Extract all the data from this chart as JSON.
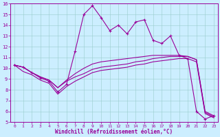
{
  "xlabel": "Windchill (Refroidissement éolien,°C)",
  "background_color": "#cceeff",
  "line_color": "#990099",
  "xlim": [
    -0.5,
    23.5
  ],
  "ylim": [
    5,
    16
  ],
  "xticks": [
    0,
    1,
    2,
    3,
    4,
    5,
    6,
    7,
    8,
    9,
    10,
    11,
    12,
    13,
    14,
    15,
    16,
    17,
    18,
    19,
    20,
    21,
    22,
    23
  ],
  "yticks": [
    5,
    6,
    7,
    8,
    9,
    10,
    11,
    12,
    13,
    14,
    15,
    16
  ],
  "series1_x": [
    0,
    1,
    2,
    3,
    4,
    5,
    6,
    7,
    8,
    9,
    10,
    11,
    12,
    13,
    14,
    15,
    16,
    17,
    18,
    19,
    20,
    21,
    22,
    23
  ],
  "series1_y": [
    10.3,
    10.1,
    9.6,
    9.1,
    8.8,
    7.8,
    8.5,
    11.6,
    15.0,
    15.8,
    14.7,
    13.5,
    14.0,
    13.2,
    14.3,
    14.5,
    12.6,
    12.3,
    13.0,
    11.2,
    10.9,
    6.0,
    5.3,
    5.6
  ],
  "series2_x": [
    0,
    1,
    2,
    3,
    4,
    5,
    6,
    7,
    8,
    9,
    10,
    11,
    12,
    13,
    14,
    15,
    16,
    17,
    18,
    19,
    20,
    21,
    22,
    23
  ],
  "series2_y": [
    10.3,
    10.1,
    9.6,
    9.2,
    8.9,
    8.2,
    8.8,
    9.2,
    9.5,
    9.9,
    10.1,
    10.2,
    10.3,
    10.4,
    10.6,
    10.7,
    10.9,
    11.0,
    11.1,
    11.1,
    11.1,
    10.8,
    5.9,
    5.5
  ],
  "series3_x": [
    0,
    1,
    2,
    3,
    4,
    5,
    6,
    7,
    8,
    9,
    10,
    11,
    12,
    13,
    14,
    15,
    16,
    17,
    18,
    19,
    20,
    21,
    22,
    23
  ],
  "series3_y": [
    10.3,
    10.1,
    9.6,
    9.2,
    8.9,
    8.2,
    8.9,
    9.5,
    10.0,
    10.4,
    10.6,
    10.7,
    10.8,
    10.9,
    11.0,
    11.1,
    11.2,
    11.2,
    11.2,
    11.2,
    11.1,
    10.8,
    6.0,
    5.6
  ],
  "series4_x": [
    0,
    1,
    2,
    3,
    4,
    5,
    6,
    7,
    8,
    9,
    10,
    11,
    12,
    13,
    14,
    15,
    16,
    17,
    18,
    19,
    20,
    21,
    22,
    23
  ],
  "series4_y": [
    10.3,
    9.7,
    9.4,
    8.9,
    8.6,
    7.6,
    8.3,
    8.8,
    9.2,
    9.6,
    9.8,
    9.9,
    10.0,
    10.1,
    10.3,
    10.4,
    10.6,
    10.7,
    10.8,
    10.9,
    10.9,
    10.6,
    5.8,
    5.4
  ]
}
